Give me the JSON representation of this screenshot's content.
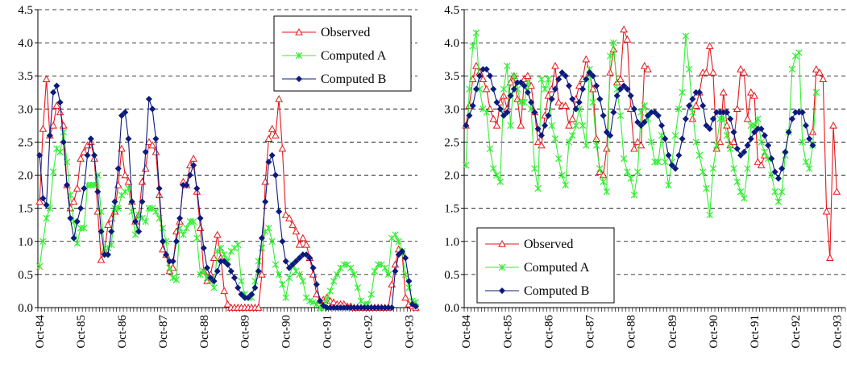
{
  "chart_data": [
    {
      "type": "line",
      "legend_position": "top-right",
      "grid": "horizontal-dashed",
      "ylim": [
        0,
        4.5
      ],
      "yticks": [
        "0.0",
        "0.5",
        "1.0",
        "1.5",
        "2.0",
        "2.5",
        "3.0",
        "3.5",
        "4.0",
        "4.5"
      ],
      "xticks": [
        "Oct-84",
        "Oct-85",
        "Oct-86",
        "Oct-87",
        "Oct-88",
        "Oct-89",
        "Oct-90",
        "Oct-91",
        "Oct-92",
        "Oct-93"
      ],
      "x_months": 111,
      "series": [
        {
          "name": "Observed",
          "color": "#e8151b",
          "marker": "triangle-open",
          "values": [
            1.6,
            2.7,
            3.45,
            2.6,
            2.75,
            3.05,
            2.95,
            2.75,
            1.85,
            1.5,
            1.6,
            1.8,
            2.25,
            2.35,
            2.45,
            2.5,
            2.25,
            1.45,
            0.72,
            0.85,
            1.25,
            1.35,
            1.45,
            1.85,
            2.4,
            2.0,
            1.9,
            1.6,
            1.3,
            1.4,
            1.9,
            2.1,
            2.5,
            2.45,
            2.35,
            1.7,
            0.88,
            0.8,
            0.55,
            0.6,
            1.15,
            1.3,
            1.9,
            1.85,
            2.15,
            2.25,
            1.75,
            1.2,
            0.55,
            0.4,
            0.5,
            0.75,
            1.1,
            0.75,
            0.25,
            0.05,
            0.0,
            0.0,
            0.0,
            0.0,
            0.0,
            0.0,
            0.0,
            0.0,
            0.0,
            0.5,
            1.9,
            2.55,
            2.7,
            2.6,
            3.15,
            2.4,
            1.4,
            1.35,
            1.25,
            1.15,
            0.95,
            1.05,
            0.95,
            0.75,
            0.5,
            0.2,
            0.1,
            0.12,
            0.15,
            0.1,
            0.08,
            0.05,
            0.05,
            0.05,
            0.02,
            0.02,
            0.0,
            0.0,
            0.0,
            0.0,
            0.0,
            0.0,
            0.0,
            0.0,
            0.0,
            0.0,
            0.0,
            0.35,
            0.65,
            0.88,
            0.85,
            0.15,
            0.05,
            0.02,
            0.0
          ]
        },
        {
          "name": "Computed A",
          "color": "#33ee33",
          "marker": "asterisk",
          "values": [
            0.62,
            1.0,
            1.35,
            1.5,
            2.05,
            2.4,
            2.35,
            2.65,
            2.2,
            1.7,
            1.3,
            0.97,
            1.2,
            1.2,
            1.85,
            1.85,
            1.85,
            2.0,
            1.45,
            0.85,
            0.9,
            0.95,
            1.5,
            1.5,
            1.7,
            1.75,
            1.8,
            1.45,
            1.1,
            1.4,
            1.35,
            1.3,
            1.5,
            1.5,
            1.45,
            1.35,
            1.2,
            1.0,
            0.6,
            0.45,
            0.42,
            1.2,
            1.1,
            1.2,
            1.3,
            1.3,
            1.05,
            0.5,
            0.55,
            0.45,
            0.42,
            0.3,
            0.85,
            0.9,
            0.8,
            0.7,
            0.85,
            0.9,
            0.95,
            0.4,
            0.2,
            0.15,
            0.15,
            0.4,
            0.7,
            0.9,
            1.15,
            1.2,
            1.0,
            0.65,
            0.5,
            0.35,
            0.15,
            0.45,
            0.65,
            0.55,
            0.5,
            0.4,
            0.15,
            0.1,
            0.08,
            0.05,
            0.0,
            0.0,
            0.12,
            0.25,
            0.4,
            0.5,
            0.6,
            0.65,
            0.65,
            0.6,
            0.5,
            0.3,
            0.1,
            0.05,
            0.05,
            0.2,
            0.55,
            0.65,
            0.65,
            0.6,
            0.5,
            1.05,
            1.1,
            1.0,
            0.85,
            0.5,
            0.3,
            0.1,
            0.08
          ]
        },
        {
          "name": "Computed B",
          "color": "#0c1a7e",
          "marker": "diamond",
          "values": [
            2.3,
            1.65,
            1.55,
            2.6,
            3.25,
            3.35,
            3.1,
            2.5,
            1.85,
            1.35,
            1.05,
            1.3,
            1.5,
            1.8,
            2.3,
            2.55,
            2.3,
            1.75,
            1.15,
            0.8,
            0.8,
            1.15,
            1.6,
            2.1,
            2.9,
            2.95,
            2.55,
            1.6,
            1.3,
            1.15,
            1.6,
            2.35,
            3.15,
            3.0,
            2.55,
            1.8,
            1.0,
            0.8,
            0.7,
            0.7,
            1.0,
            1.35,
            1.85,
            1.85,
            2.0,
            2.15,
            1.8,
            1.35,
            0.9,
            0.6,
            0.45,
            0.4,
            0.55,
            0.7,
            0.7,
            0.65,
            0.55,
            0.45,
            0.3,
            0.2,
            0.15,
            0.15,
            0.2,
            0.3,
            0.55,
            1.05,
            1.6,
            2.2,
            2.3,
            2.0,
            1.45,
            1.0,
            0.7,
            0.6,
            0.65,
            0.7,
            0.75,
            0.8,
            0.8,
            0.75,
            0.6,
            0.35,
            0.1,
            0.03,
            0.0,
            0.0,
            0.0,
            0.0,
            0.0,
            0.0,
            0.0,
            0.0,
            0.0,
            0.0,
            0.0,
            0.0,
            0.0,
            0.0,
            0.0,
            0.0,
            0.0,
            0.0,
            0.0,
            0.0,
            0.55,
            0.8,
            0.85,
            0.75,
            0.4,
            0.05,
            0.02
          ]
        }
      ]
    },
    {
      "type": "line",
      "legend_position": "bottom-left",
      "grid": "horizontal-dashed",
      "ylim": [
        0,
        4.5
      ],
      "yticks": [
        "0.0",
        "0.5",
        "1.0",
        "1.5",
        "2.0",
        "2.5",
        "3.0",
        "3.5",
        "4.0",
        "4.5"
      ],
      "xticks": [
        "Oct-84",
        "Oct-85",
        "Oct-86",
        "Oct-87",
        "Oct-88",
        "Oct-89",
        "Oct-90",
        "Oct-91",
        "Oct-92",
        "Oct-93"
      ],
      "x_months": 111,
      "series": [
        {
          "name": "Observed",
          "color": "#e8151b",
          "marker": "triangle-open",
          "values": [
            2.75,
            3.05,
            3.45,
            3.65,
            3.55,
            3.45,
            3.3,
            3.0,
            2.85,
            2.75,
            3.1,
            3.2,
            3.0,
            3.4,
            3.5,
            3.15,
            2.75,
            3.45,
            3.5,
            3.35,
            2.95,
            2.5,
            2.45,
            2.9,
            3.2,
            3.3,
            3.65,
            3.1,
            3.05,
            3.05,
            2.75,
            2.85,
            3.15,
            3.35,
            3.45,
            3.75,
            3.55,
            3.3,
            2.55,
            2.05,
            2.0,
            2.4,
            3.55,
            3.9,
            3.4,
            3.45,
            4.2,
            4.05,
            3.0,
            2.4,
            2.5,
            2.45,
            3.65,
            3.6,
            null,
            null,
            null,
            null,
            null,
            null,
            null,
            null,
            null,
            null,
            null,
            null,
            2.85,
            3.05,
            3.25,
            3.55,
            3.55,
            3.95,
            3.55,
            2.4,
            2.5,
            3.25,
            2.75,
            2.45,
            2.5,
            3.0,
            3.6,
            3.55,
            2.85,
            3.25,
            3.2,
            2.2,
            2.15,
            2.3,
            null,
            null,
            null,
            null,
            null,
            null,
            null,
            null,
            null,
            null,
            null,
            null,
            null,
            2.65,
            3.6,
            3.55,
            3.45,
            1.45,
            0.75,
            2.75,
            1.75
          ]
        },
        {
          "name": "Computed A",
          "color": "#33ee33",
          "marker": "asterisk",
          "values": [
            2.15,
            3.3,
            3.95,
            4.15,
            3.3,
            3.0,
            2.95,
            2.4,
            2.1,
            2.0,
            1.9,
            3.3,
            3.65,
            2.75,
            3.5,
            3.3,
            3.1,
            3.1,
            3.4,
            3.0,
            2.1,
            1.8,
            3.45,
            3.3,
            3.45,
            2.75,
            2.55,
            2.25,
            2.0,
            1.85,
            2.5,
            2.6,
            2.75,
            3.0,
            2.75,
            2.45,
            3.6,
            3.1,
            2.45,
            2.1,
            1.9,
            1.75,
            3.8,
            4.0,
            3.3,
            2.9,
            2.25,
            2.05,
            1.95,
            1.7,
            2.05,
            2.95,
            3.05,
            2.85,
            2.5,
            2.2,
            2.2,
            2.6,
            2.2,
            1.85,
            2.2,
            2.6,
            3.0,
            3.25,
            4.1,
            3.6,
            2.95,
            2.5,
            2.3,
            2.05,
            1.8,
            1.4,
            2.1,
            2.45,
            2.85,
            2.85,
            2.6,
            2.4,
            2.1,
            1.9,
            1.75,
            1.65,
            2.1,
            2.75,
            2.75,
            2.85,
            2.5,
            2.35,
            2.25,
            2.0,
            1.75,
            1.6,
            1.75,
            2.3,
            2.65,
            3.6,
            3.8,
            3.85,
            2.5,
            2.2,
            2.1,
            2.45,
            3.25,
            null,
            null,
            null,
            null,
            null,
            null,
            null,
            null
          ]
        },
        {
          "name": "Computed B",
          "color": "#0c1a7e",
          "marker": "diamond",
          "values": [
            2.75,
            2.9,
            3.05,
            3.3,
            3.5,
            3.6,
            3.6,
            3.5,
            3.3,
            3.1,
            3.0,
            2.9,
            2.95,
            3.2,
            3.3,
            3.4,
            3.4,
            3.35,
            3.25,
            3.1,
            2.95,
            2.7,
            2.6,
            2.75,
            2.9,
            3.15,
            3.3,
            3.45,
            3.55,
            3.5,
            3.35,
            3.15,
            3.0,
            3.1,
            3.3,
            3.45,
            3.55,
            3.5,
            3.35,
            3.15,
            2.9,
            2.65,
            2.6,
            2.95,
            3.2,
            3.3,
            3.35,
            3.3,
            3.2,
            3.0,
            2.8,
            2.75,
            2.8,
            2.9,
            2.95,
            2.95,
            2.9,
            2.75,
            2.55,
            2.3,
            2.15,
            2.1,
            2.3,
            2.55,
            2.85,
            3.05,
            3.15,
            3.25,
            3.25,
            3.05,
            2.75,
            2.7,
            2.85,
            2.95,
            2.95,
            2.95,
            2.95,
            2.85,
            2.65,
            2.4,
            2.3,
            2.35,
            2.45,
            2.55,
            2.65,
            2.7,
            2.7,
            2.6,
            2.45,
            2.25,
            2.05,
            1.95,
            2.1,
            2.35,
            2.65,
            2.85,
            2.95,
            2.95,
            2.95,
            2.75,
            2.55,
            2.45,
            null,
            null,
            null,
            null,
            null,
            null,
            null,
            null,
            null
          ]
        }
      ]
    }
  ]
}
